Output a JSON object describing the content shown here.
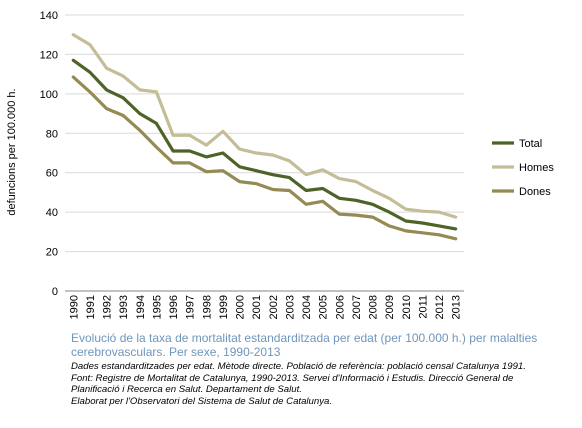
{
  "chart_data": {
    "type": "line",
    "title": "",
    "xlabel": "",
    "ylabel": "defuncions per 100.000 h.",
    "ylim": [
      0,
      140
    ],
    "yticks": [
      0,
      20,
      40,
      60,
      80,
      100,
      120,
      140
    ],
    "grid": true,
    "legend_position": "right",
    "x": [
      "1990",
      "1991",
      "1992",
      "1993",
      "1994",
      "1995",
      "1996",
      "1997",
      "1998",
      "1999",
      "2000",
      "2001",
      "2002",
      "2003",
      "2004",
      "2005",
      "2006",
      "2007",
      "2008",
      "2009",
      "2010",
      "2011",
      "2012",
      "2013"
    ],
    "series": [
      {
        "name": "Total",
        "color": "#4f6228",
        "values": [
          117,
          111,
          102,
          98,
          90,
          85,
          71,
          71,
          68,
          70,
          63,
          61,
          59,
          57.5,
          51,
          52,
          47,
          46,
          44,
          40,
          35.5,
          34.5,
          33,
          31.5
        ]
      },
      {
        "name": "Homes",
        "color": "#c4bd97",
        "values": [
          130,
          125,
          113,
          109,
          102,
          101,
          79,
          79,
          74,
          81,
          72,
          70,
          69,
          66,
          59,
          61.5,
          57,
          55.5,
          51,
          47,
          41.5,
          40.5,
          40,
          37.5
        ]
      },
      {
        "name": "Dones",
        "color": "#948a54",
        "values": [
          108.5,
          101,
          92.5,
          89,
          81.5,
          73,
          65,
          65,
          60.5,
          61,
          55.5,
          54.5,
          51.5,
          51,
          44,
          45.5,
          39,
          38.5,
          37.5,
          33,
          30.5,
          29.5,
          28.5,
          26.5
        ]
      }
    ]
  },
  "caption": {
    "title_line1": "Evolució de la taxa de mortalitat estandarditzada per edat (per 100.000 h.) per malalties",
    "title_line2": "cerebrovasculars. Per sexe, 1990-2013",
    "notes": [
      "Dades estandarditzades per edat. Mètode directe. Població de referència: població censal Catalunya 1991.",
      "Font: Registre de Mortalitat de Catalunya, 1990-2013. Servei d'Informació i Estudis. Direcció General de",
      "Planificació i Recerca en Salut. Departament de Salut.",
      "Elaborat per l'Observatori del Sistema de Salut de Catalunya."
    ]
  }
}
